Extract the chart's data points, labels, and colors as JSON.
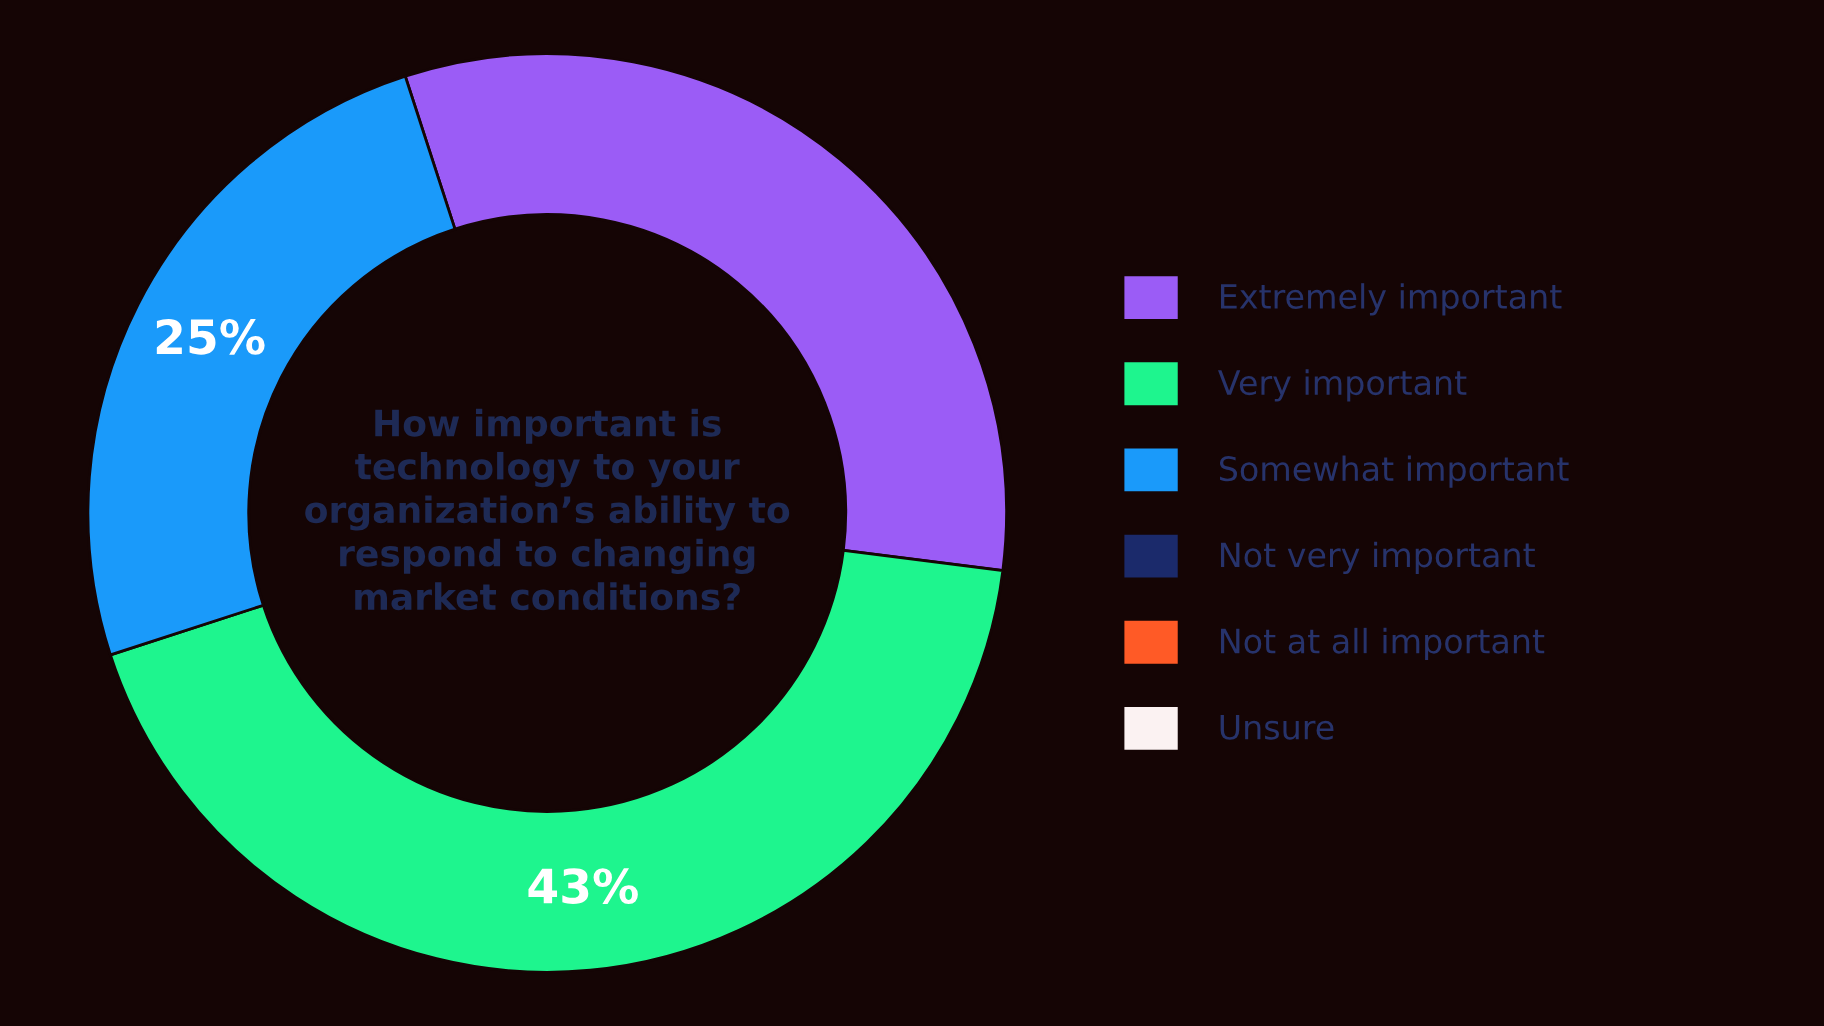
{
  "chart_data": {
    "type": "donut",
    "title": "How important is technology to your organization’s ability to respond to changing market conditions?",
    "categories": [
      "Extremely important",
      "Very important",
      "Somewhat important",
      "Not very important",
      "Not at all important",
      "Unsure"
    ],
    "values": [
      32,
      43,
      25,
      0,
      0,
      0
    ],
    "colors": [
      "#9b5cf6",
      "#1ef58e",
      "#1a9afa",
      "#1b2a6b",
      "#ff5a26",
      "#fbf2f2"
    ],
    "value_labels": [
      null,
      "43%",
      "25%",
      null,
      null,
      null
    ],
    "legend": "right"
  }
}
